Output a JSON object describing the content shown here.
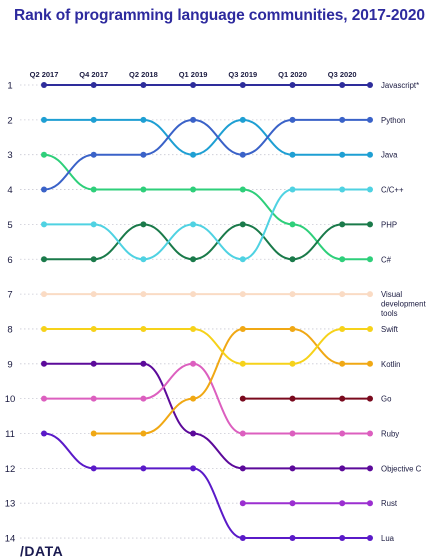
{
  "title": "Rank of programming language communities, 2017-2020",
  "logo_text": "/DATA",
  "chart_data": {
    "type": "line",
    "chart_kind": "bump",
    "title": "Rank of programming language communities, 2017-2020",
    "x": [
      "Q2 2017",
      "Q4 2017",
      "Q2 2018",
      "Q1 2019",
      "Q3 2019",
      "Q1 2020",
      "Q3 2020"
    ],
    "y_ticks": [
      1,
      2,
      3,
      4,
      5,
      6,
      7,
      8,
      9,
      10,
      11,
      12,
      13,
      14
    ],
    "ylim": [
      1,
      14
    ],
    "y_inverted": true,
    "grid": "horizontal dotted",
    "legend_placement": "right",
    "series": [
      {
        "name": "Javascript*",
        "color": "#2e2d9b",
        "values": [
          1,
          1,
          1,
          1,
          1,
          1,
          1
        ]
      },
      {
        "name": "Python",
        "color": "#3a62c8",
        "values": [
          4,
          3,
          3,
          2,
          3,
          2,
          2
        ]
      },
      {
        "name": "Java",
        "color": "#1e9fd3",
        "values": [
          2,
          2,
          2,
          3,
          2,
          3,
          3
        ]
      },
      {
        "name": "C/C++",
        "color": "#4fd2e2",
        "values": [
          5,
          5,
          6,
          5,
          6,
          4,
          4
        ]
      },
      {
        "name": "PHP",
        "color": "#1a7a4a",
        "values": [
          6,
          6,
          5,
          6,
          5,
          6,
          5
        ]
      },
      {
        "name": "C#",
        "color": "#2ecf7a",
        "values": [
          3,
          4,
          4,
          4,
          4,
          5,
          6
        ]
      },
      {
        "name": "Visual development tools",
        "color": "#fadbc4",
        "values": [
          7,
          7,
          7,
          7,
          7,
          7,
          7
        ]
      },
      {
        "name": "Swift",
        "color": "#f6d21a",
        "values": [
          8,
          8,
          8,
          8,
          9,
          9,
          8
        ]
      },
      {
        "name": "Kotlin",
        "color": "#f0a814",
        "values": [
          null,
          11,
          11,
          10,
          8,
          8,
          9
        ]
      },
      {
        "name": "Go",
        "color": "#7a0a1e",
        "values": [
          null,
          null,
          null,
          null,
          10,
          10,
          10
        ]
      },
      {
        "name": "Ruby",
        "color": "#dc5fbf",
        "values": [
          10,
          10,
          10,
          9,
          11,
          11,
          11
        ]
      },
      {
        "name": "Objective C",
        "color": "#5c0a9a",
        "values": [
          9,
          9,
          9,
          11,
          12,
          12,
          12
        ]
      },
      {
        "name": "Rust",
        "color": "#9b2fd0",
        "values": [
          null,
          null,
          null,
          null,
          13,
          13,
          13
        ]
      },
      {
        "name": "Lua",
        "color": "#5a1ac8",
        "values": [
          11,
          12,
          12,
          12,
          14,
          14,
          14
        ]
      }
    ]
  }
}
